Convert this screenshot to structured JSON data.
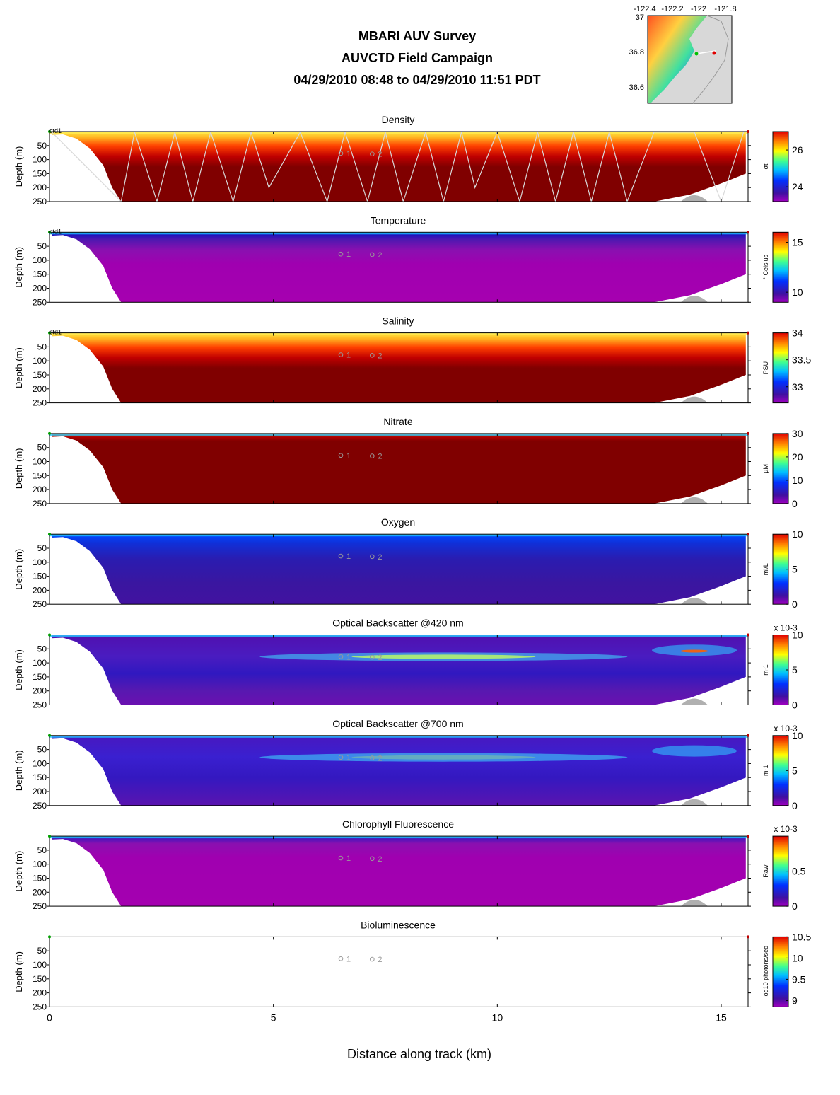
{
  "header": {
    "title": "MBARI AUV Survey",
    "subtitle": "AUVCTD Field Campaign",
    "time_range": "04/29/2010 08:48  to 04/29/2010 11:51 PDT"
  },
  "inset_map": {
    "lon_ticks": [
      "-122.4",
      "-122.2",
      "-122",
      "-121.8"
    ],
    "lat_ticks": [
      "37",
      "36.8",
      "36.6"
    ]
  },
  "chart_data": {
    "type": "heatmap",
    "xlabel": "Distance along track (km)",
    "ylabel": "Depth (m)",
    "xlim": [
      0,
      15.6
    ],
    "ylim": [
      0,
      250
    ],
    "x_ticks": [
      0,
      5,
      10,
      15
    ],
    "y_ticks": [
      50,
      100,
      150,
      200,
      250
    ],
    "ctd_label": "ctd1",
    "station_markers": [
      {
        "label": "1",
        "distance_km": 6.6,
        "depth_m": 78
      },
      {
        "label": "2",
        "distance_km": 7.3,
        "depth_m": 80
      }
    ],
    "panels": [
      {
        "title": "Density",
        "units": "σt",
        "clim": [
          23.2,
          27.0
        ],
        "cbar_ticks": [
          "26",
          "24"
        ],
        "cbar_tick_values": [
          26,
          24
        ],
        "exponent": "",
        "colormap": "hot"
      },
      {
        "title": "Temperature",
        "units": "° Celsius",
        "clim": [
          9.0,
          16.0
        ],
        "cbar_ticks": [
          "15",
          "10"
        ],
        "cbar_tick_values": [
          15,
          10
        ],
        "exponent": "",
        "colormap": "cold"
      },
      {
        "title": "Salinity",
        "units": "PSU",
        "clim": [
          32.7,
          34.0
        ],
        "cbar_ticks": [
          "34",
          "33.5",
          "33"
        ],
        "cbar_tick_values": [
          34,
          33.5,
          33
        ],
        "exponent": "",
        "colormap": "hot"
      },
      {
        "title": "Nitrate",
        "units": "µM",
        "clim": [
          0,
          30
        ],
        "cbar_ticks": [
          "30",
          "20",
          "10",
          "0"
        ],
        "cbar_tick_values": [
          30,
          20,
          10,
          0
        ],
        "exponent": "",
        "colormap": "darkred"
      },
      {
        "title": "Oxygen",
        "units": "ml/L",
        "clim": [
          0,
          10
        ],
        "cbar_ticks": [
          "10",
          "5",
          "0"
        ],
        "cbar_tick_values": [
          10,
          5,
          0
        ],
        "exponent": "",
        "colormap": "blue"
      },
      {
        "title": "Optical Backscatter @420 nm",
        "units": "m-1",
        "clim": [
          0,
          10
        ],
        "cbar_ticks": [
          "10",
          "5",
          "0"
        ],
        "cbar_tick_values": [
          10,
          5,
          0
        ],
        "exponent": "x 10-3",
        "colormap": "backscatter"
      },
      {
        "title": "Optical Backscatter @700 nm",
        "units": "m-1",
        "clim": [
          0,
          10
        ],
        "cbar_ticks": [
          "10",
          "5",
          "0"
        ],
        "cbar_tick_values": [
          10,
          5,
          0
        ],
        "exponent": "x 10-3",
        "colormap": "backscatter2"
      },
      {
        "title": "Chlorophyll Fluorescence",
        "units": "Raw",
        "clim": [
          0,
          1
        ],
        "cbar_ticks": [
          "0.5",
          "0"
        ],
        "cbar_tick_values": [
          0.5,
          0
        ],
        "exponent": "x 10-3",
        "colormap": "purple"
      },
      {
        "title": "Bioluminescence",
        "units": "log10 photons/sec",
        "clim": [
          8.85,
          10.5
        ],
        "cbar_ticks": [
          "10.5",
          "10",
          "9.5",
          "9"
        ],
        "cbar_tick_values": [
          10.5,
          10,
          9.5,
          9
        ],
        "exponent": "",
        "colormap": "empty"
      }
    ]
  }
}
